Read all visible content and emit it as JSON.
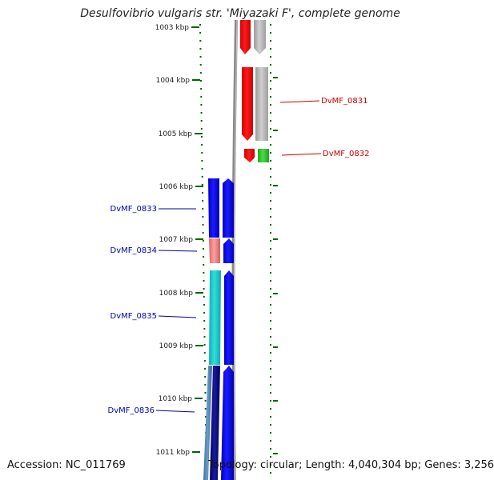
{
  "title": "Desulfovibrio vulgaris str. 'Miyazaki F', complete genome",
  "footer": {
    "accession": "Accession: NC_011769",
    "topology": "Topology: circular; Length: 4,040,304 bp; Genes: 3,256"
  },
  "scale": {
    "unit": "kbp",
    "ticks": [
      {
        "kbp": 1003,
        "label": "1003 kbp"
      },
      {
        "kbp": 1004,
        "label": "1004 kbp"
      },
      {
        "kbp": 1005,
        "label": "1005 kbp"
      },
      {
        "kbp": 1006,
        "label": "1006 kbp"
      },
      {
        "kbp": 1007,
        "label": "1007 kbp"
      },
      {
        "kbp": 1008,
        "label": "1008 kbp"
      },
      {
        "kbp": 1009,
        "label": "1009 kbp"
      },
      {
        "kbp": 1010,
        "label": "1010 kbp"
      },
      {
        "kbp": 1011,
        "label": "1011 kbp"
      }
    ]
  },
  "colors": {
    "label_forward": "#0000aa",
    "label_reverse": "#cc0000",
    "gene_blue": "#0000ff",
    "gene_red": "#ff0000",
    "gene_gray": "#b4b4b4",
    "gene_green": "#33cc33",
    "gene_cyan": "#1ecdcd",
    "gene_pink": "#f08080",
    "gene_steel": "#4682b4",
    "gene_navy": "#000080",
    "backbone": "#808080",
    "ruler": "#006400"
  },
  "features": [
    {
      "locus": "DvMF_0831",
      "strand": "reverse",
      "start_kbp": 1003.75,
      "end_kbp": 1005.14
    },
    {
      "locus": "DvMF_0832",
      "strand": "reverse",
      "start_kbp": 1005.28,
      "end_kbp": 1005.53
    },
    {
      "locus": "DvMF_0833",
      "strand": "forward",
      "start_kbp": 1005.89,
      "end_kbp": 1006.98
    },
    {
      "locus": "DvMF_0834",
      "strand": "forward",
      "start_kbp": 1007.0,
      "end_kbp": 1007.47
    },
    {
      "locus": "DvMF_0835",
      "strand": "forward",
      "start_kbp": 1007.59,
      "end_kbp": 1009.36
    },
    {
      "locus": "DvMF_0836",
      "strand": "forward",
      "start_kbp": 1009.38,
      "end_kbp": 1011.5
    }
  ]
}
